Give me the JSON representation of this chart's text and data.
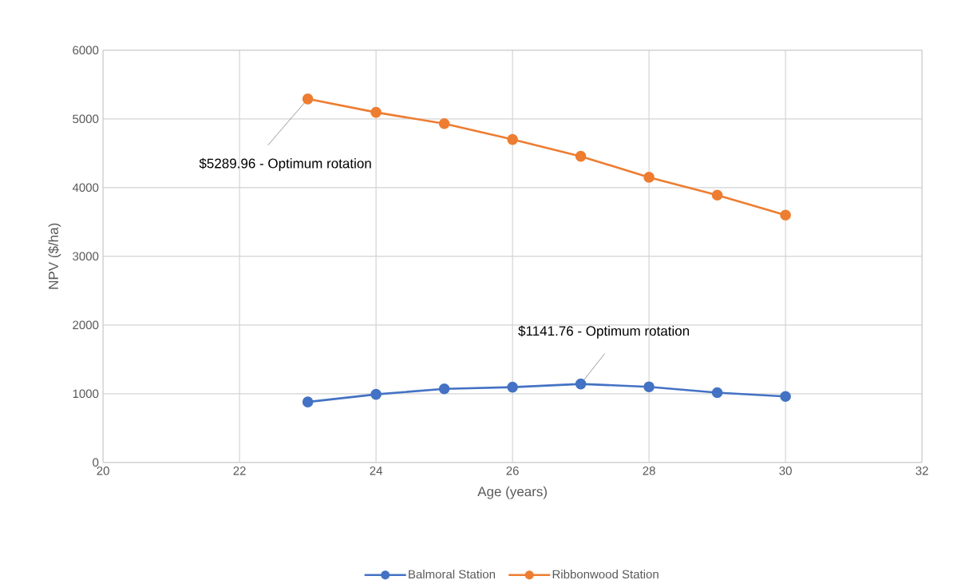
{
  "chart_data": {
    "type": "line",
    "xlabel": "Age (years)",
    "ylabel": "NPV ($/ha)",
    "x": [
      23,
      24,
      25,
      26,
      27,
      28,
      29,
      30
    ],
    "series": [
      {
        "name": "Balmoral Station",
        "color": "#4472c4",
        "values": [
          880,
          990,
          1070,
          1095,
          1141.76,
          1100,
          1015,
          960
        ]
      },
      {
        "name": "Ribbonwood Station",
        "color": "#ed7d31",
        "values": [
          5289.96,
          5095,
          4930,
          4700,
          4455,
          4150,
          3890,
          3600
        ]
      }
    ],
    "xlim": [
      20,
      32
    ],
    "ylim": [
      0,
      6000
    ],
    "xticks": [
      20,
      22,
      24,
      26,
      28,
      30,
      32
    ],
    "yticks": [
      0,
      1000,
      2000,
      3000,
      4000,
      5000,
      6000
    ],
    "annotations": [
      {
        "text": "$5289.96 - Optimum rotation",
        "x": 23,
        "y": 5289.96
      },
      {
        "text": "$1141.76 - Optimum rotation",
        "x": 27,
        "y": 1141.76
      }
    ],
    "grid": true,
    "legend": "bottom",
    "marker": "circle",
    "line_style": "solid"
  }
}
